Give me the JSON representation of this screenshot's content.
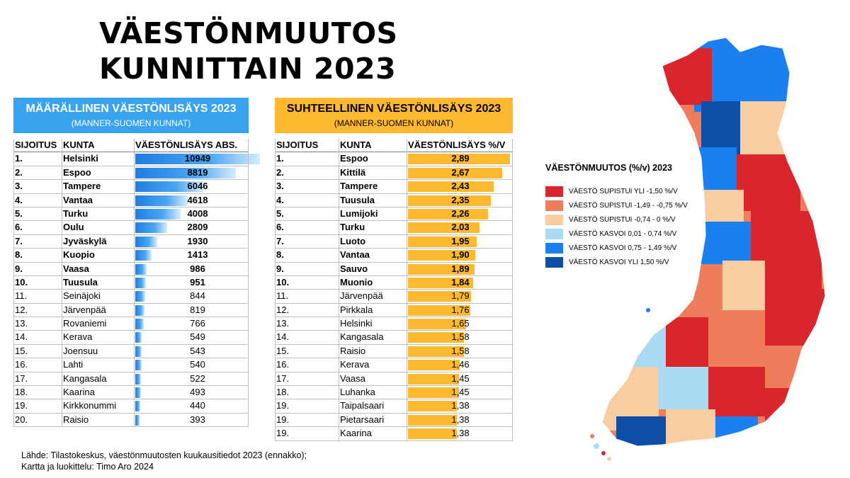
{
  "title": {
    "line1": "VÄESTÖNMUUTOS",
    "line2": "KUNNITTAIN 2023"
  },
  "abs_table": {
    "title": "MÄÄRÄLLINEN VÄESTÖNLISÄYS 2023",
    "subtitle": "(MANNER-SUOMEN KUNNAT)",
    "headers": {
      "rank": "SIJOITUS",
      "name": "KUNTA",
      "value": "VÄESTÖNLISÄYS ABS."
    },
    "rows": [
      {
        "rank": "1.",
        "name": "Helsinki",
        "value": "10949"
      },
      {
        "rank": "2.",
        "name": "Espoo",
        "value": "8819"
      },
      {
        "rank": "3.",
        "name": "Tampere",
        "value": "6046"
      },
      {
        "rank": "4.",
        "name": "Vantaa",
        "value": "4618"
      },
      {
        "rank": "5.",
        "name": "Turku",
        "value": "4008"
      },
      {
        "rank": "6.",
        "name": "Oulu",
        "value": "2809"
      },
      {
        "rank": "7.",
        "name": "Jyväskylä",
        "value": "1930"
      },
      {
        "rank": "8.",
        "name": "Kuopio",
        "value": "1413"
      },
      {
        "rank": "9.",
        "name": "Vaasa",
        "value": "986"
      },
      {
        "rank": "10.",
        "name": "Tuusula",
        "value": "951"
      },
      {
        "rank": "11.",
        "name": "Seinäjoki",
        "value": "844"
      },
      {
        "rank": "12.",
        "name": "Järvenpää",
        "value": "819"
      },
      {
        "rank": "13.",
        "name": "Rovaniemi",
        "value": "766"
      },
      {
        "rank": "14.",
        "name": "Kerava",
        "value": "549"
      },
      {
        "rank": "15.",
        "name": "Joensuu",
        "value": "543"
      },
      {
        "rank": "16.",
        "name": "Lahti",
        "value": "540"
      },
      {
        "rank": "17.",
        "name": "Kangasala",
        "value": "522"
      },
      {
        "rank": "18.",
        "name": "Kaarina",
        "value": "493"
      },
      {
        "rank": "19.",
        "name": "Kirkkonummi",
        "value": "440"
      },
      {
        "rank": "20.",
        "name": "Raisio",
        "value": "393"
      }
    ]
  },
  "rel_table": {
    "title": "SUHTEELLINEN VÄESTÖNLISÄYS 2023",
    "subtitle": "(MANNER-SUOMEN KUNNAT)",
    "headers": {
      "rank": "SIJOITUS",
      "name": "KUNTA",
      "value": "VÄESTÖNLISÄYS %/V"
    },
    "rows": [
      {
        "rank": "1.",
        "name": "Espoo",
        "value": "2,89"
      },
      {
        "rank": "2.",
        "name": "Kittilä",
        "value": "2,67"
      },
      {
        "rank": "3.",
        "name": "Tampere",
        "value": "2,43"
      },
      {
        "rank": "4.",
        "name": "Tuusula",
        "value": "2,35"
      },
      {
        "rank": "5.",
        "name": "Lumijoki",
        "value": "2,26"
      },
      {
        "rank": "6.",
        "name": "Turku",
        "value": "2,03"
      },
      {
        "rank": "7.",
        "name": "Luoto",
        "value": "1,95"
      },
      {
        "rank": "8.",
        "name": "Vantaa",
        "value": "1,90"
      },
      {
        "rank": "9.",
        "name": "Sauvo",
        "value": "1,89"
      },
      {
        "rank": "10.",
        "name": "Muonio",
        "value": "1,84"
      },
      {
        "rank": "11.",
        "name": "Järvenpää",
        "value": "1,79"
      },
      {
        "rank": "12.",
        "name": "Pirkkala",
        "value": "1,76"
      },
      {
        "rank": "13.",
        "name": "Helsinki",
        "value": "1,65"
      },
      {
        "rank": "14.",
        "name": "Kangasala",
        "value": "1,58"
      },
      {
        "rank": "15.",
        "name": "Raisio",
        "value": "1,58"
      },
      {
        "rank": "16.",
        "name": "Kerava",
        "value": "1,46"
      },
      {
        "rank": "17.",
        "name": "Vaasa",
        "value": "1,45"
      },
      {
        "rank": "18.",
        "name": "Luhanka",
        "value": "1,45"
      },
      {
        "rank": "19.",
        "name": "Taipalsaari",
        "value": "1,38"
      },
      {
        "rank": "19.",
        "name": "Pietarsaari",
        "value": "1,38"
      },
      {
        "rank": "19.",
        "name": "Kaarina",
        "value": "1,38"
      }
    ]
  },
  "chart_data": [
    {
      "type": "bar",
      "title": "MÄÄRÄLLINEN VÄESTÖNLISÄYS 2023",
      "categories": [
        "Helsinki",
        "Espoo",
        "Tampere",
        "Vantaa",
        "Turku",
        "Oulu",
        "Jyväskylä",
        "Kuopio",
        "Vaasa",
        "Tuusula",
        "Seinäjoki",
        "Järvenpää",
        "Rovaniemi",
        "Kerava",
        "Joensuu",
        "Lahti",
        "Kangasala",
        "Kaarina",
        "Kirkkonummi",
        "Raisio"
      ],
      "values": [
        10949,
        8819,
        6046,
        4618,
        4008,
        2809,
        1930,
        1413,
        986,
        951,
        844,
        819,
        766,
        549,
        543,
        540,
        522,
        493,
        440,
        393
      ],
      "xlim": [
        0,
        10949
      ]
    },
    {
      "type": "bar",
      "title": "SUHTEELLINEN VÄESTÖNLISÄYS 2023",
      "categories": [
        "Espoo",
        "Kittilä",
        "Tampere",
        "Tuusula",
        "Lumijoki",
        "Turku",
        "Luoto",
        "Vantaa",
        "Sauvo",
        "Muonio",
        "Järvenpää",
        "Pirkkala",
        "Helsinki",
        "Kangasala",
        "Raisio",
        "Kerava",
        "Vaasa",
        "Luhanka",
        "Taipalsaari",
        "Pietarsaari",
        "Kaarina"
      ],
      "values": [
        2.89,
        2.67,
        2.43,
        2.35,
        2.26,
        2.03,
        1.95,
        1.9,
        1.89,
        1.84,
        1.79,
        1.76,
        1.65,
        1.58,
        1.58,
        1.46,
        1.45,
        1.45,
        1.38,
        1.38,
        1.38
      ],
      "xlim": [
        0,
        2.89
      ]
    }
  ],
  "legend": {
    "title": "VÄESTÖNMUUTOS (%/v) 2023",
    "items": [
      {
        "label": "VÄESTÖ SUPISTUI YLI -1,50 %/V",
        "color": "#d9262c"
      },
      {
        "label": "VÄESTÖ SUPISTUI -1,49 - -0,75 %/V",
        "color": "#ee7d5c"
      },
      {
        "label": "VÄESTÖ SUPISTUI -0,74 - 0 %/V",
        "color": "#f8cda1"
      },
      {
        "label": "VÄESTÖ KASVOI 0,01 - 0,74 %/V",
        "color": "#a9dcf4"
      },
      {
        "label": "VÄESTÖ KASVOI 0,75 - 1,49 %/V",
        "color": "#1b7ff0"
      },
      {
        "label": "VÄESTÖ KASVOI YLI 1,50 %/V",
        "color": "#0d4fa6"
      }
    ]
  },
  "source": {
    "line1": "Lähde: Tilastokeskus, väestönmuutosten kuukausitiedot 2023 (ennakko);",
    "line2": "Kartta ja luokittelu: Timo Aro 2024"
  }
}
